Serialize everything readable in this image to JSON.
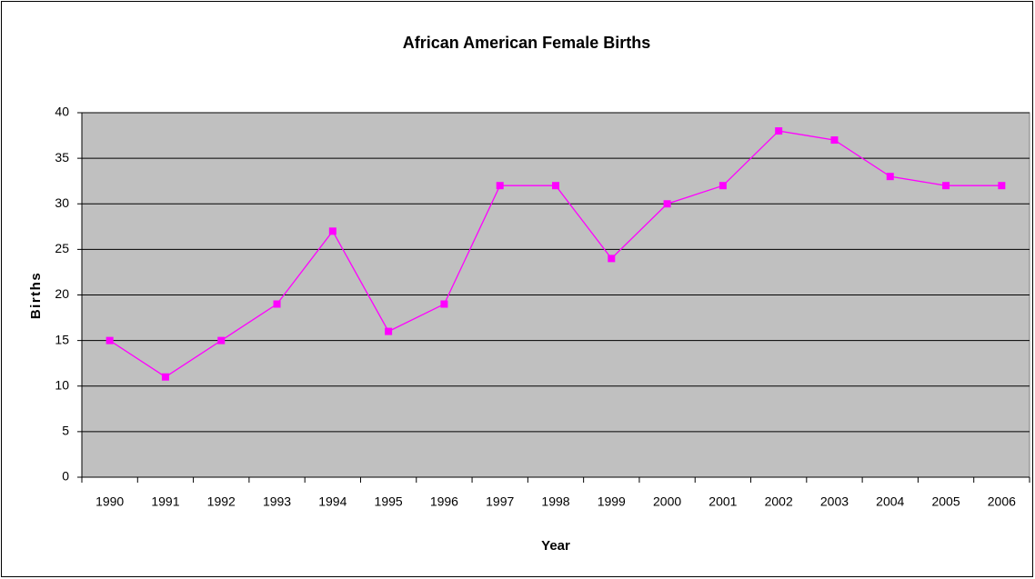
{
  "chart_data": {
    "type": "line",
    "title": "African American Female Births",
    "x_label": "Year",
    "y_label": "Births",
    "categories": [
      "1990",
      "1991",
      "1992",
      "1993",
      "1994",
      "1995",
      "1996",
      "1997",
      "1998",
      "1999",
      "2000",
      "2001",
      "2002",
      "2003",
      "2004",
      "2005",
      "2006"
    ],
    "series": [
      {
        "name": "Births",
        "color": "#ff00ff",
        "values": [
          15,
          11,
          15,
          19,
          27,
          16,
          19,
          32,
          32,
          24,
          30,
          32,
          38,
          37,
          33,
          32,
          32
        ]
      }
    ],
    "ylim": [
      0,
      40
    ],
    "yticks": [
      0,
      5,
      10,
      15,
      20,
      25,
      30,
      35,
      40
    ],
    "grid": true,
    "legend": false
  }
}
